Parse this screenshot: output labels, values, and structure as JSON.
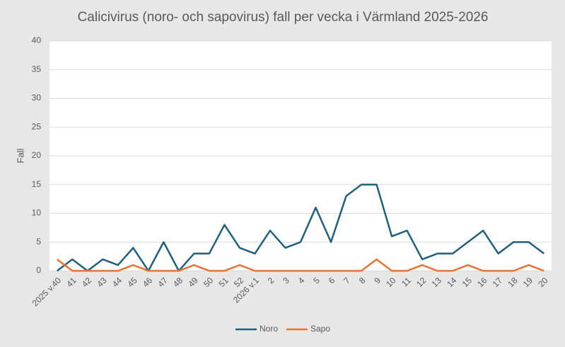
{
  "chart_data": {
    "type": "line",
    "title": "Calicivirus (noro- och sapovirus) fall per vecka i Värmland 2025-2026",
    "y_label": "Fall",
    "categories": [
      "2025 v.40",
      "41",
      "42",
      "43",
      "44",
      "45",
      "46",
      "47",
      "48",
      "49",
      "50",
      "51",
      "52",
      "2026 v.1",
      "2",
      "3",
      "4",
      "5",
      "6",
      "7",
      "8",
      "9",
      "10",
      "11",
      "12",
      "13",
      "14",
      "15",
      "16",
      "17",
      "18",
      "19",
      "20"
    ],
    "series": [
      {
        "name": "Noro",
        "color": "#1f5f7f",
        "values": [
          0,
          2,
          0,
          2,
          1,
          4,
          0,
          5,
          0,
          3,
          3,
          8,
          4,
          3,
          7,
          4,
          5,
          11,
          5,
          13,
          15,
          15,
          6,
          7,
          2,
          3,
          3,
          5,
          7,
          3,
          5,
          5,
          3
        ]
      },
      {
        "name": "Sapo",
        "color": "#e97132",
        "values": [
          2,
          0,
          0,
          0,
          0,
          1,
          0,
          0,
          0,
          1,
          0,
          0,
          1,
          0,
          0,
          0,
          0,
          0,
          0,
          0,
          0,
          2,
          0,
          0,
          1,
          0,
          0,
          1,
          0,
          0,
          0,
          1,
          0
        ]
      }
    ],
    "ylim": [
      0,
      40
    ],
    "yticks": [
      0,
      5,
      10,
      15,
      20,
      25,
      30,
      35,
      40
    ],
    "grid": true,
    "legend": "bottom"
  }
}
